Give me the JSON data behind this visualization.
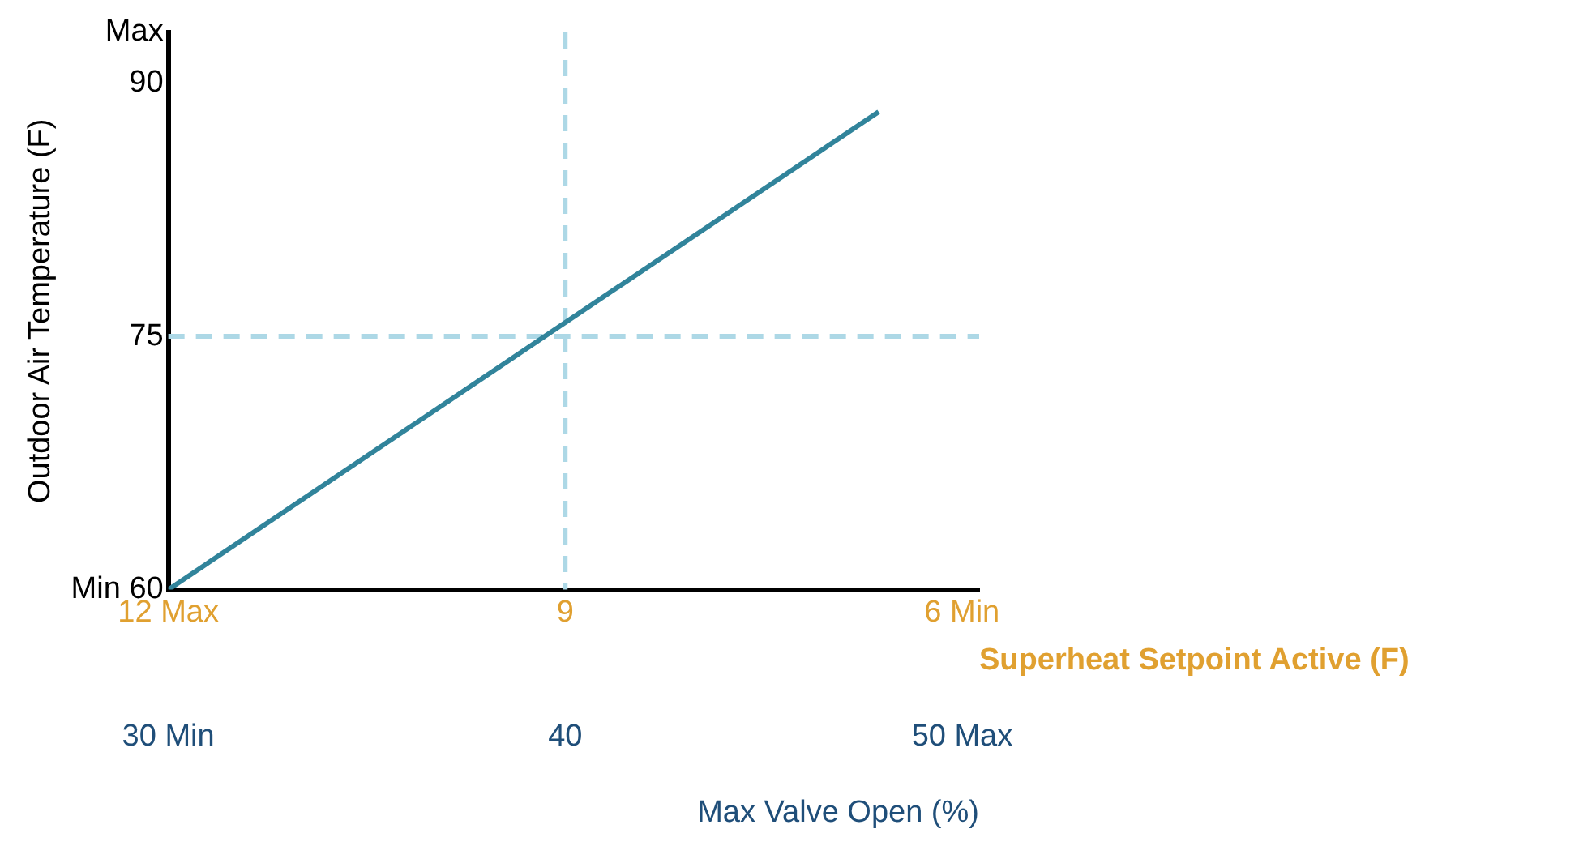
{
  "chart_data": {
    "type": "line",
    "xlabel": "Superheat Setpoint Active (F)",
    "x2label": "Max Valve Open (%)",
    "ylabel": "Outdoor Air Temperature (F)",
    "series": [
      {
        "x": [
          12,
          6.63
        ],
        "values": [
          60,
          88.3
        ],
        "color": "#31849b"
      }
    ],
    "xlim": [
      12,
      5.87
    ],
    "xticks": [
      {
        "value": 12,
        "label": "12 Max"
      },
      9,
      {
        "value": 6,
        "label": "6 Min"
      }
    ],
    "x2lim": [
      30,
      50.43
    ],
    "x2ticks": [
      {
        "value": 30,
        "label": "30 Min"
      },
      40,
      {
        "value": 50,
        "label": "50 Max"
      }
    ],
    "ylim": [
      60,
      93
    ],
    "yticks": [
      {
        "value": 60,
        "label": "Min 60"
      },
      75,
      90,
      {
        "value": 93,
        "label": "Max"
      }
    ],
    "ref_lines": [
      {
        "axis": "y",
        "value": 75,
        "color": "#add8e6",
        "line_style": "dashed"
      },
      {
        "axis": "x",
        "value": 9,
        "color": "#add8e6",
        "line_style": "dashed"
      }
    ],
    "grid": false,
    "legend": false,
    "marker": "none",
    "line_style": "solid"
  }
}
